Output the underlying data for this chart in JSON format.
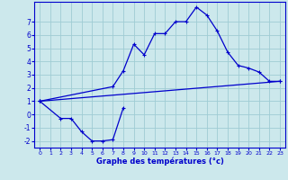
{
  "xlabel": "Graphe des températures (°c)",
  "background_color": "#cce8ec",
  "grid_color": "#9fccd4",
  "line_color": "#0000cc",
  "series": [
    {
      "x": [
        0,
        2,
        3,
        4,
        5,
        6,
        7,
        8
      ],
      "y": [
        1.0,
        -0.3,
        -0.3,
        -1.3,
        -2.0,
        -2.0,
        -1.9,
        0.5
      ]
    },
    {
      "x": [
        0,
        7,
        8,
        9,
        10,
        11,
        12,
        13,
        14,
        15,
        16,
        17,
        18,
        19,
        20,
        21,
        22,
        23
      ],
      "y": [
        1.0,
        2.1,
        3.3,
        5.3,
        4.5,
        6.1,
        6.1,
        7.0,
        7.0,
        8.1,
        7.5,
        6.3,
        4.7,
        3.7,
        3.5,
        3.2,
        2.5,
        2.5
      ]
    },
    {
      "x": [
        0,
        23
      ],
      "y": [
        1.0,
        2.5
      ]
    }
  ],
  "ylim": [
    -2.5,
    8.5
  ],
  "xlim": [
    -0.5,
    23.5
  ],
  "yticks": [
    -2,
    -1,
    0,
    1,
    2,
    3,
    4,
    5,
    6,
    7
  ],
  "xticks": [
    0,
    1,
    2,
    3,
    4,
    5,
    6,
    7,
    8,
    9,
    10,
    11,
    12,
    13,
    14,
    15,
    16,
    17,
    18,
    19,
    20,
    21,
    22,
    23
  ],
  "xlabel_fontsize": 6.0,
  "tick_fontsize_x": 4.5,
  "tick_fontsize_y": 5.5
}
